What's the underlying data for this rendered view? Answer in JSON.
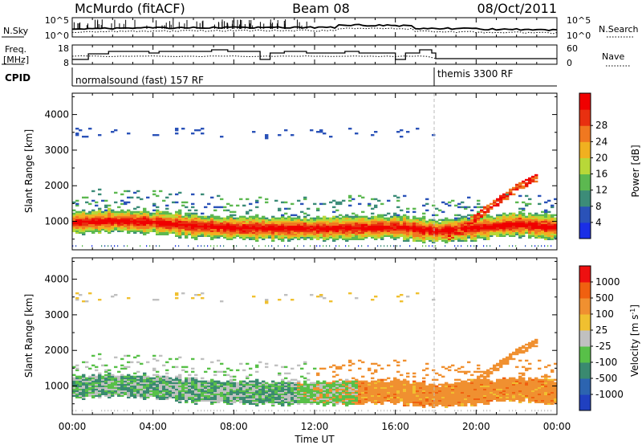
{
  "header": {
    "site": "McMurdo (fitACF)",
    "beam": "Beam 08",
    "date": "08/Oct/2011"
  },
  "top_panels": {
    "nsky": {
      "label": "N.Sky",
      "ticks": [
        "10^5",
        "10^0"
      ]
    },
    "nsearch": {
      "label": "N.Search",
      "ticks": [
        "10^5",
        "10^0"
      ]
    },
    "freq": {
      "label_line1": "Freq.",
      "label_line2": "[MHz]",
      "ticks": [
        "18",
        "8"
      ]
    },
    "nave": {
      "label": "Nave",
      "ticks": [
        "60",
        "0"
      ]
    },
    "cpid": {
      "label": "CPID",
      "mode1": "normalsound (fast) 157 RF",
      "mode2": "themis 3300 RF"
    }
  },
  "colors": {
    "power_scale": [
      "#1a2ee6",
      "#2a52b8",
      "#3c8c78",
      "#5cb850",
      "#b8d838",
      "#f0b020",
      "#f07820",
      "#e83010",
      "#f00000"
    ],
    "velocity_scale": [
      "#2040c0",
      "#2c64b0",
      "#3a8a70",
      "#58c048",
      "#c0c0c0",
      "#f0c030",
      "#f09030",
      "#f06010",
      "#ee1010"
    ]
  },
  "chart_data": [
    {
      "type": "heatmap",
      "name": "power",
      "ylabel": "Slant Range [km]",
      "y_ticks": [
        1000,
        2000,
        3000,
        4000
      ],
      "ylim": [
        200,
        4600
      ],
      "colorbar": {
        "label": "Power [dB]",
        "ticks": [
          4,
          8,
          12,
          16,
          20,
          24,
          28
        ],
        "range": [
          0,
          32
        ]
      },
      "main_band_km_center_by_hour": [
        [
          0,
          950
        ],
        [
          2,
          1000
        ],
        [
          4,
          950
        ],
        [
          6,
          850
        ],
        [
          8,
          800
        ],
        [
          10,
          780
        ],
        [
          12,
          780
        ],
        [
          14,
          800
        ],
        [
          16,
          820
        ],
        [
          18,
          700
        ],
        [
          20,
          800
        ],
        [
          22,
          900
        ],
        [
          24,
          800
        ]
      ]
    },
    {
      "type": "heatmap",
      "name": "velocity",
      "ylabel": "Slant Range [km]",
      "xlabel": "Time UT",
      "x_ticks": [
        "00:00",
        "04:00",
        "08:00",
        "12:00",
        "16:00",
        "20:00",
        "00:00"
      ],
      "xlim_hours": [
        0,
        24
      ],
      "y_ticks": [
        1000,
        2000,
        3000,
        4000
      ],
      "ylim": [
        200,
        4600
      ],
      "colorbar": {
        "label_main": "Velocity [m s",
        "label_sup": "-1",
        "label_end": "]",
        "ticks": [
          1000,
          500,
          100,
          25,
          -25,
          -100,
          -500,
          -1000
        ]
      }
    }
  ]
}
